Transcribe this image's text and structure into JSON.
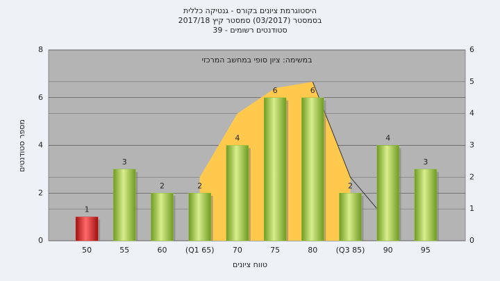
{
  "chart_data": {
    "type": "bar",
    "title": [
      "היסטוגרמת ציונים בקורס - גנטיקה כללית",
      "בסמסטר  (03/2017)  סמסטר קיץ  2017/18",
      "סטודנטים רשומים - 39"
    ],
    "annotation": "במשימה: ציון סופי במחשב המרכזי",
    "y_label": "מספר סטודנטים",
    "x_label": "טווח ציונים",
    "categories": [
      "50",
      "55",
      "60",
      "(Q1 65)",
      "70",
      "75",
      "80",
      "(Q3 85)",
      "90",
      "95"
    ],
    "series": [
      {
        "type": "bar",
        "values": [
          1,
          3,
          2,
          2,
          4,
          6,
          6,
          2,
          4,
          3
        ],
        "colors": [
          "#d42a2a",
          "#8fbf3a",
          "#8fbf3a",
          "#8fbf3a",
          "#8fbf3a",
          "#8fbf3a",
          "#8fbf3a",
          "#8fbf3a",
          "#8fbf3a",
          "#8fbf3a"
        ]
      },
      {
        "type": "area",
        "axis": "y2",
        "color": "#ffc94d",
        "values": [
          null,
          null,
          null,
          2,
          4,
          4.8,
          5,
          2,
          null,
          null
        ]
      },
      {
        "type": "line",
        "axis": "y2",
        "color": "#333333",
        "values": [
          null,
          null,
          null,
          null,
          null,
          null,
          5,
          2,
          0.6,
          null
        ]
      }
    ],
    "ylim": [
      0,
      8
    ],
    "yticks": [
      0,
      2,
      4,
      6,
      8
    ],
    "y2lim": [
      0,
      6
    ],
    "y2ticks": [
      0,
      1,
      2,
      3,
      4,
      5,
      6
    ],
    "grid": true
  }
}
